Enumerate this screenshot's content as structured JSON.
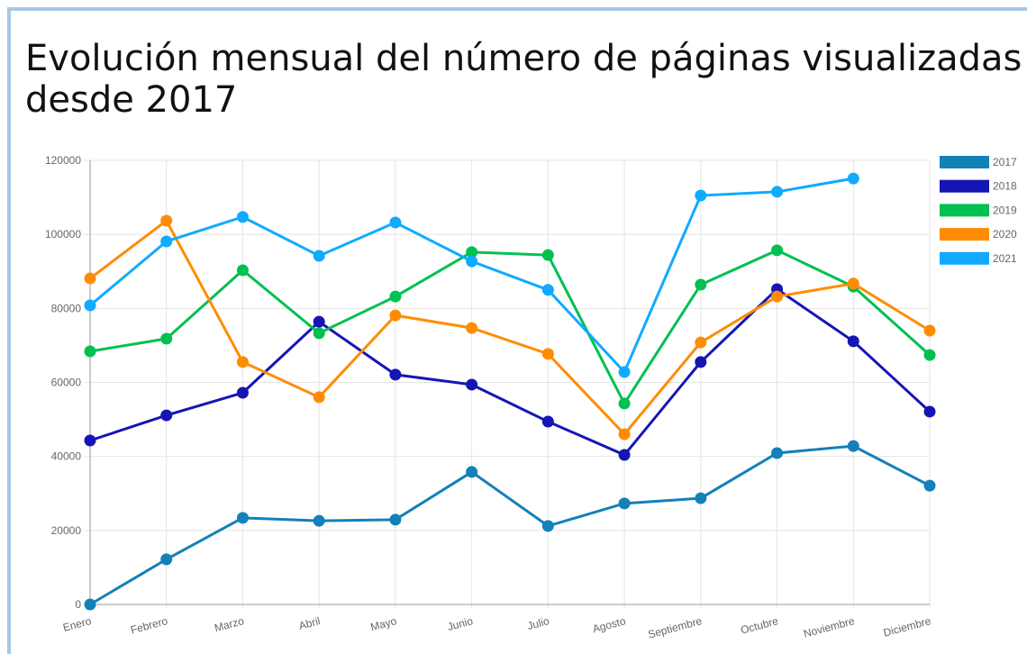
{
  "chart_data": {
    "type": "line",
    "title": [
      "Evolución mensual del número de páginas visualizadas",
      "desde 2017"
    ],
    "categories": [
      "Enero",
      "Febrero",
      "Marzo",
      "Abril",
      "Mayo",
      "Junio",
      "Julio",
      "Agosto",
      "Septiembre",
      "Octubre",
      "Noviembre",
      "Diciembre"
    ],
    "series": [
      {
        "name": "2017",
        "color": "#1380b8",
        "values": [
          0,
          12200,
          23400,
          22600,
          22900,
          35800,
          21200,
          27300,
          28700,
          40900,
          42800,
          32100
        ]
      },
      {
        "name": "2018",
        "color": "#1515b5",
        "values": [
          44300,
          51100,
          57200,
          76400,
          62100,
          59400,
          49400,
          40400,
          65500,
          85200,
          71100,
          52100
        ]
      },
      {
        "name": "2019",
        "color": "#00c050",
        "values": [
          68400,
          71800,
          90300,
          73300,
          83200,
          95200,
          94400,
          54300,
          86400,
          95700,
          85900,
          67400
        ]
      },
      {
        "name": "2020",
        "color": "#ff8c00",
        "values": [
          88100,
          103700,
          65500,
          56000,
          78100,
          74700,
          67700,
          46000,
          70800,
          83200,
          86700,
          74000
        ]
      },
      {
        "name": "2021",
        "color": "#11aaff",
        "values": [
          80800,
          98100,
          104700,
          94200,
          103200,
          92700,
          85000,
          62800,
          110500,
          111500,
          115100,
          null
        ]
      }
    ],
    "ylim": [
      0,
      120000
    ],
    "yticks": [
      0,
      20000,
      40000,
      60000,
      80000,
      100000,
      120000
    ],
    "grid": true,
    "legend": "right"
  }
}
